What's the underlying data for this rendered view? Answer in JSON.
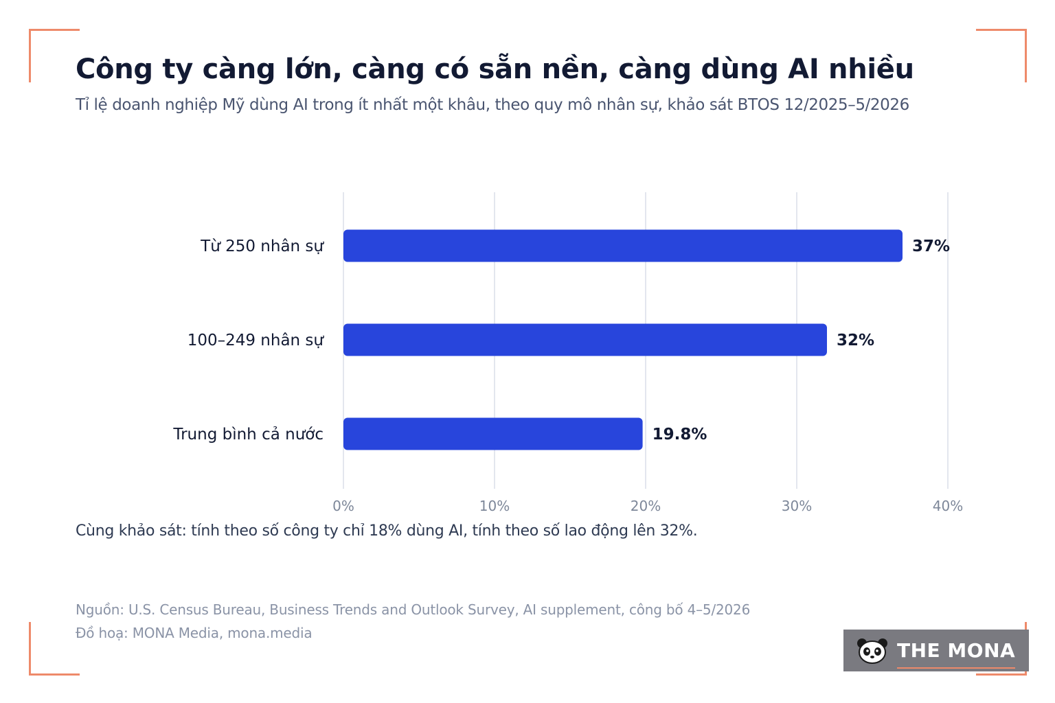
{
  "colors": {
    "accent": "#ee8a6a",
    "bar": "#2845dc",
    "grid": "#e3e6ee"
  },
  "header": {
    "title": "Công ty càng lớn, càng có sẵn nền, càng dùng AI nhiều",
    "subtitle": "Tỉ lệ doanh nghiệp Mỹ dùng AI trong ít nhất một khâu, theo quy mô nhân sự, khảo sát BTOS 12/2025–5/2026"
  },
  "chart_data": {
    "type": "bar",
    "orientation": "horizontal",
    "categories": [
      "Từ 250 nhân sự",
      "100–249 nhân sự",
      "Trung bình cả nước"
    ],
    "values": [
      37,
      32,
      19.8
    ],
    "value_labels": [
      "37%",
      "32%",
      "19.8%"
    ],
    "xlim": [
      0,
      40
    ],
    "ticks": [
      0,
      10,
      20,
      30,
      40
    ],
    "tick_labels": [
      "0%",
      "10%",
      "20%",
      "30%",
      "40%"
    ],
    "grid": true
  },
  "footer": {
    "note": "Cùng khảo sát: tính theo số công ty chỉ 18% dùng AI, tính theo số lao động lên 32%.",
    "source": "Nguồn: U.S. Census Bureau, Business Trends and Outlook Survey, AI supplement, công bố 4–5/2026",
    "credit": "Đồ hoạ: MONA Media, mona.media"
  },
  "logo": {
    "text": "THE MONA",
    "icon": "panda-icon"
  }
}
